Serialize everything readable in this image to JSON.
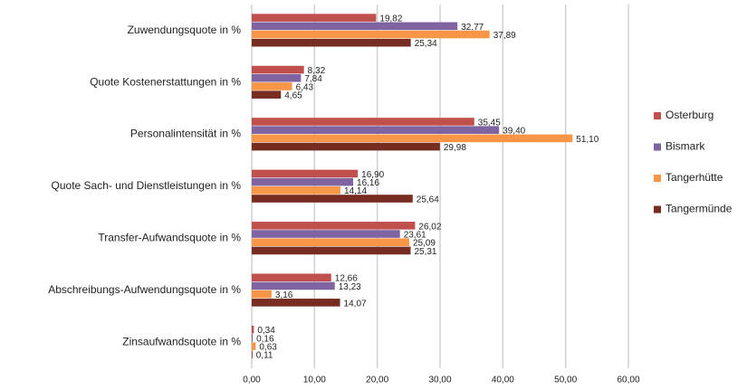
{
  "chart_data": {
    "type": "barh",
    "categories": [
      "Zuwendungsquote in %",
      "Quote Kostenerstattungen in %",
      "Personalintensität in %",
      "Quote Sach- und Dienstleistungen in %",
      "Transfer-Aufwandsquote in %",
      "Abschreibungs-Aufwendungsquote in %",
      "Zinsaufwandsquote in %"
    ],
    "series": [
      {
        "name": "Osterburg",
        "color": "#c0504d",
        "values": [
          19.82,
          8.32,
          35.45,
          16.9,
          26.02,
          12.66,
          0.34
        ],
        "value_labels": [
          "19,82",
          "8,32",
          "35,45",
          "16,90",
          "26,02",
          "12,66",
          "0,34"
        ]
      },
      {
        "name": "Bismark",
        "color": "#8064a2",
        "values": [
          32.77,
          7.84,
          39.4,
          16.16,
          23.61,
          13.23,
          0.16
        ],
        "value_labels": [
          "32,77",
          "7,84",
          "39,40",
          "16,16",
          "23,61",
          "13,23",
          "0,16"
        ]
      },
      {
        "name": "Tangerhütte",
        "color": "#f79646",
        "values": [
          37.89,
          6.43,
          51.1,
          14.14,
          25.09,
          3.16,
          0.63
        ],
        "value_labels": [
          "37,89",
          "6,43",
          "51,10",
          "14,14",
          "25,09",
          "3,16",
          "0,63"
        ]
      },
      {
        "name": "Tangermünde",
        "color": "#772c22",
        "values": [
          25.34,
          4.65,
          29.98,
          25.64,
          25.31,
          14.07,
          0.11
        ],
        "value_labels": [
          "25,34",
          "4,65",
          "29,98",
          "25,64",
          "25,31",
          "14,07",
          "0,11"
        ]
      }
    ],
    "xlim": [
      0,
      60
    ],
    "xticks": [
      {
        "value": 0,
        "label": "0,00"
      },
      {
        "value": 10,
        "label": "10,00"
      },
      {
        "value": 20,
        "label": "20,00"
      },
      {
        "value": 30,
        "label": "30,00"
      },
      {
        "value": 40,
        "label": "40,00"
      },
      {
        "value": 50,
        "label": "50,00"
      },
      {
        "value": 60,
        "label": "60,00"
      }
    ],
    "grid": true,
    "legend": "right"
  }
}
